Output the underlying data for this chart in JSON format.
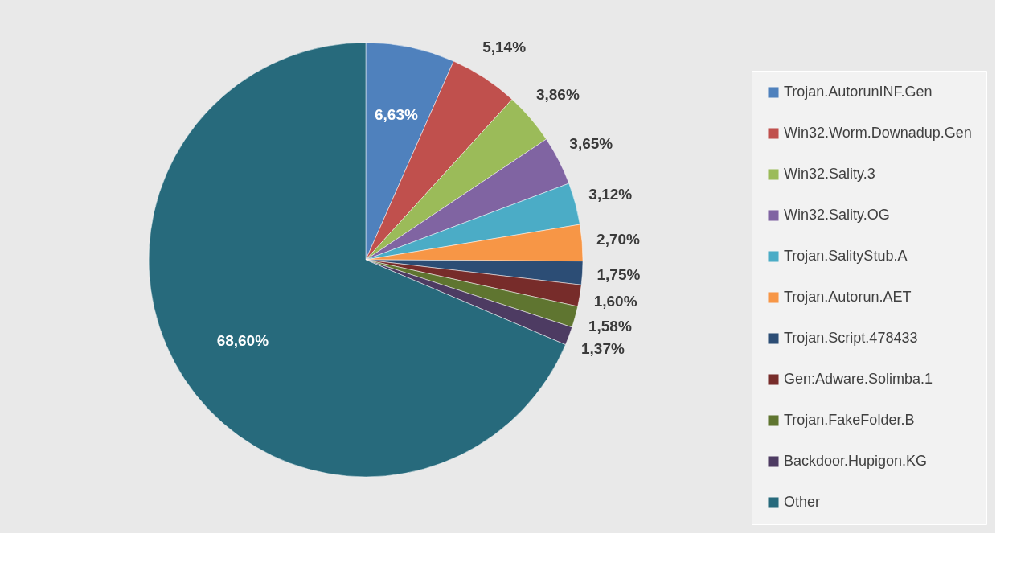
{
  "chart_data": {
    "type": "pie",
    "categories": [
      "Trojan.AutorunINF.Gen",
      "Win32.Worm.Downadup.Gen",
      "Win32.Sality.3",
      "Win32.Sality.OG",
      "Trojan.SalityStub.A",
      "Trojan.Autorun.AET",
      "Trojan.Script.478433",
      "Gen:Adware.Solimba.1",
      "Trojan.FakeFolder.B",
      "Backdoor.Hupigon.KG",
      "Other"
    ],
    "values": [
      6.63,
      5.14,
      3.86,
      3.65,
      3.12,
      2.7,
      1.75,
      1.6,
      1.58,
      1.37,
      68.6
    ],
    "value_labels": [
      "6,63%",
      "5,14%",
      "3,86%",
      "3,65%",
      "3,12%",
      "2,70%",
      "1,75%",
      "1,60%",
      "1,58%",
      "1,37%",
      "68,60%"
    ],
    "colors": [
      "#4f81bd",
      "#c0504d",
      "#9bbb59",
      "#8064a2",
      "#4bacc6",
      "#f79646",
      "#2c4d75",
      "#772c2a",
      "#5f7530",
      "#4d3b62",
      "#276a7c"
    ],
    "legend": "right"
  }
}
